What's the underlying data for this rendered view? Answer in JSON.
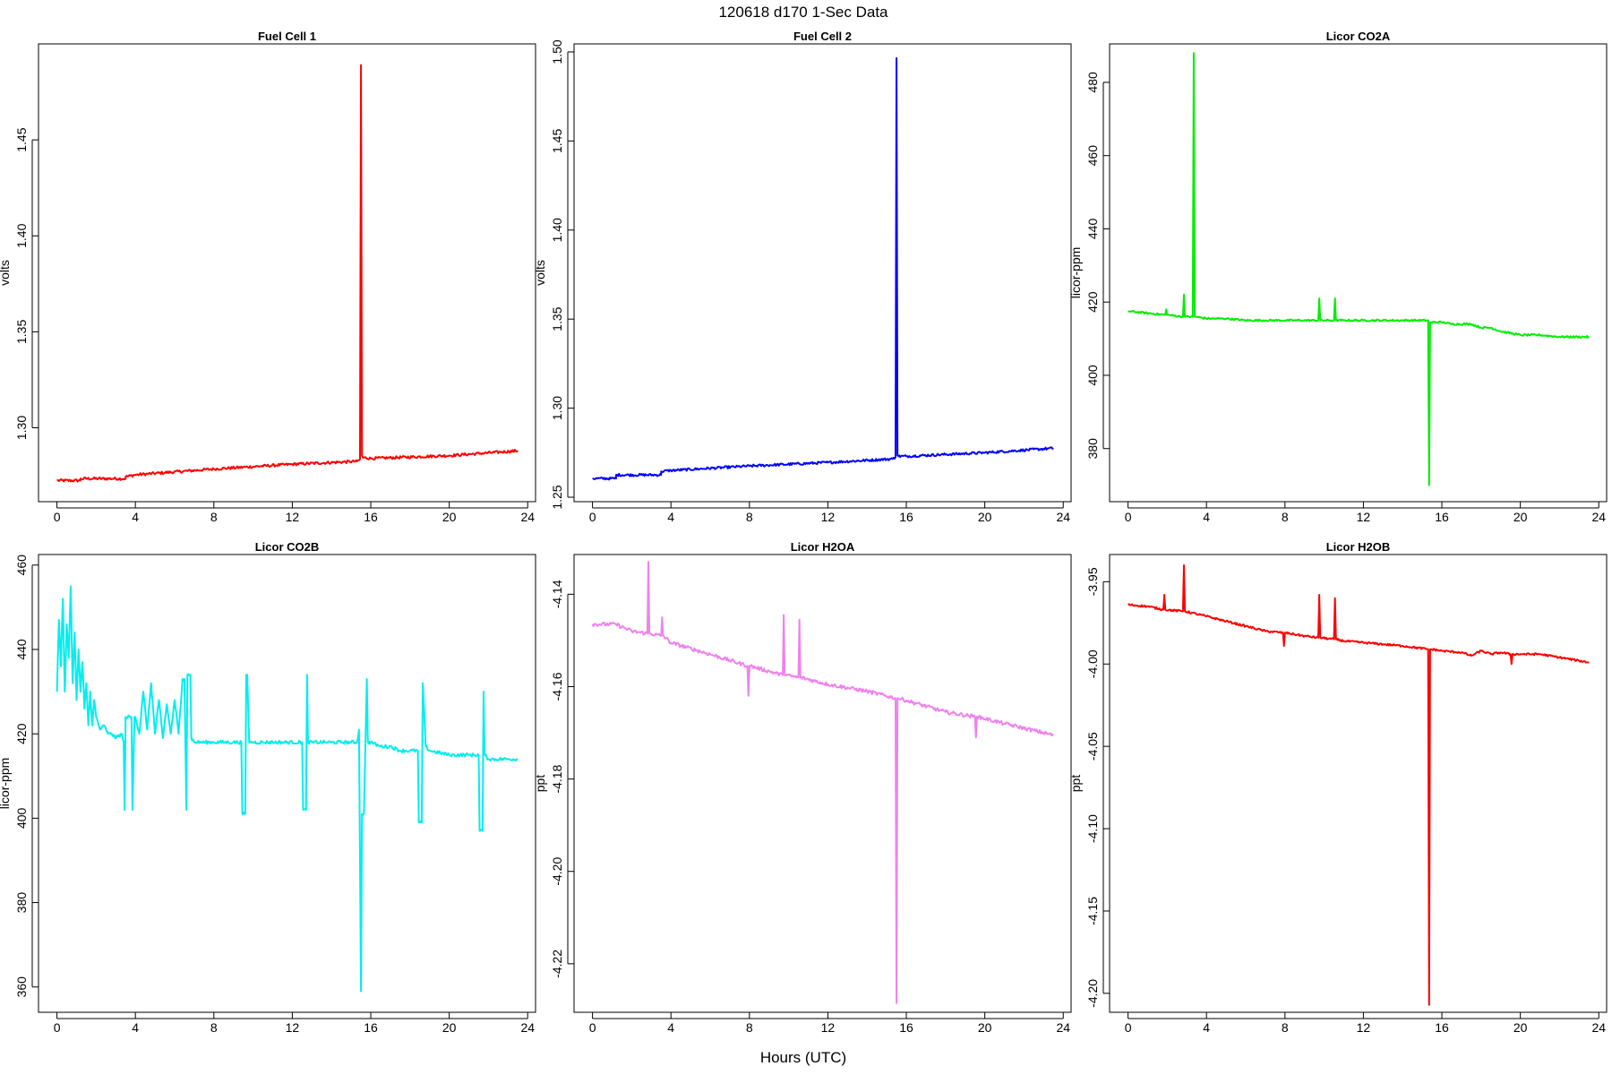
{
  "figure": {
    "title": "120618   d170   1-Sec Data",
    "xlabel": "Hours (UTC)"
  },
  "chart_data": [
    {
      "type": "line",
      "title": "Fuel Cell 1",
      "ylabel": "volts",
      "xlim": [
        -0.94,
        24.4
      ],
      "ylim": [
        1.2615,
        1.5
      ],
      "xticks": [
        0,
        4,
        8,
        12,
        16,
        20,
        24
      ],
      "yticks": [
        1.3,
        1.35,
        1.4,
        1.45
      ],
      "ytick_labels": [
        "1.30",
        "1.35",
        "1.40",
        "1.45"
      ],
      "color": "#ff0000",
      "noise": 0.0007,
      "series": [
        {
          "x": [
            0,
            1.2,
            1.2,
            3.5,
            3.5,
            4,
            8,
            12,
            15.3,
            15.45,
            15.5,
            15.55,
            15.6,
            16,
            20,
            23.5
          ],
          "y": [
            1.2725,
            1.2725,
            1.2735,
            1.2735,
            1.2745,
            1.2755,
            1.2785,
            1.281,
            1.2825,
            1.2835,
            1.489,
            1.2855,
            1.2845,
            1.284,
            1.2855,
            1.288
          ]
        }
      ]
    },
    {
      "type": "line",
      "title": "Fuel Cell 2",
      "ylabel": "volts",
      "xlim": [
        -0.94,
        24.4
      ],
      "ylim": [
        1.2475,
        1.5045
      ],
      "xticks": [
        0,
        4,
        8,
        12,
        16,
        20,
        24
      ],
      "yticks": [
        1.25,
        1.3,
        1.35,
        1.4,
        1.45,
        1.5
      ],
      "ytick_labels": [
        "1.25",
        "1.30",
        "1.35",
        "1.40",
        "1.45",
        "1.50"
      ],
      "color": "#0000ff",
      "noise": 0.0007,
      "series": [
        {
          "x": [
            0,
            1.2,
            1.2,
            3.5,
            3.5,
            4,
            8,
            12,
            15.3,
            15.45,
            15.5,
            15.55,
            15.6,
            16,
            20,
            23.5
          ],
          "y": [
            1.2605,
            1.2605,
            1.2625,
            1.2625,
            1.2645,
            1.265,
            1.2675,
            1.2695,
            1.2715,
            1.2725,
            1.4965,
            1.2735,
            1.273,
            1.273,
            1.275,
            1.2775
          ]
        }
      ]
    },
    {
      "type": "line",
      "title": "Licor CO2A",
      "ylabel": "licor-ppm",
      "xlim": [
        -0.94,
        24.4
      ],
      "ylim": [
        365.5,
        490.5
      ],
      "xticks": [
        0,
        4,
        8,
        12,
        16,
        20,
        24
      ],
      "yticks": [
        380,
        400,
        420,
        440,
        460,
        480
      ],
      "ytick_labels": [
        "380",
        "400",
        "420",
        "440",
        "460",
        "480"
      ],
      "color": "#00ee00",
      "noise": 0.25,
      "series": [
        {
          "x": [
            0,
            1.9,
            1.95,
            2,
            2.8,
            2.85,
            2.9,
            3.3,
            3.35,
            3.4,
            3.45,
            4,
            5,
            6,
            7,
            8,
            9,
            9.7,
            9.75,
            9.8,
            10.5,
            10.55,
            10.6,
            11,
            12,
            13,
            14,
            15.3,
            15.35,
            15.4,
            15.45,
            16,
            16.5,
            17.5,
            18,
            18.5,
            19,
            20,
            21,
            22,
            23.5
          ],
          "y": [
            417.5,
            416.5,
            418,
            416.5,
            416,
            422,
            416,
            416,
            488,
            416,
            416,
            415.5,
            415.5,
            415,
            415,
            415,
            415,
            415,
            421,
            415,
            415,
            421,
            415,
            415,
            415,
            415,
            415,
            415,
            370,
            414.5,
            414.5,
            414.5,
            414,
            414,
            413,
            413,
            412,
            411,
            411,
            410.5,
            410.5
          ]
        }
      ]
    },
    {
      "type": "line",
      "title": "Licor CO2B",
      "ylabel": "licor-ppm",
      "xlim": [
        -0.94,
        24.4
      ],
      "ylim": [
        354,
        462.5
      ],
      "xticks": [
        0,
        4,
        8,
        12,
        16,
        20,
        24
      ],
      "yticks": [
        360,
        380,
        400,
        420,
        440,
        460
      ],
      "ytick_labels": [
        "360",
        "380",
        "400",
        "420",
        "440",
        "460"
      ],
      "color": "#00eeee",
      "noise": 0.4,
      "series": [
        {
          "x": [
            0,
            0.1,
            0.2,
            0.3,
            0.4,
            0.5,
            0.6,
            0.7,
            0.8,
            0.9,
            1,
            1.1,
            1.2,
            1.3,
            1.4,
            1.5,
            1.6,
            1.7,
            1.8,
            1.9,
            2,
            2.2,
            2.4,
            2.6,
            2.8,
            3,
            3.3,
            3.4,
            3.45,
            3.5,
            3.8,
            3.85,
            3.95,
            4,
            4.2,
            4.4,
            4.6,
            4.8,
            5,
            5.2,
            5.4,
            5.6,
            5.8,
            6,
            6.2,
            6.4,
            6.5,
            6.6,
            6.65,
            6.8,
            6.85,
            7,
            7.5,
            8,
            9,
            9.4,
            9.45,
            9.6,
            9.65,
            9.7,
            9.8,
            9.85,
            10,
            10.5,
            11,
            12,
            12.5,
            12.55,
            12.7,
            12.75,
            12.8,
            13,
            14,
            15,
            15.3,
            15.4,
            15.5,
            15.55,
            15.65,
            15.8,
            15.85,
            16,
            16.5,
            17,
            17.5,
            18,
            18.4,
            18.45,
            18.6,
            18.65,
            18.8,
            19,
            20,
            21,
            21.5,
            21.55,
            21.7,
            21.75,
            21.8,
            22,
            23,
            23.5
          ],
          "y": [
            430,
            447,
            436,
            452,
            430,
            446,
            438,
            455,
            432,
            444,
            428,
            440,
            430,
            437,
            426,
            432,
            422,
            430,
            422,
            428,
            424,
            421,
            422,
            420,
            420,
            419,
            420,
            418,
            402,
            424,
            424,
            402,
            424,
            424,
            420,
            430,
            421,
            432,
            420,
            428,
            419,
            427,
            420,
            428,
            420,
            433,
            433,
            402,
            434,
            434,
            419,
            418,
            418,
            418,
            418,
            418,
            401,
            401,
            434,
            434,
            418,
            418,
            418,
            418,
            418,
            418,
            418,
            402,
            402,
            434,
            418,
            418,
            418,
            418,
            418,
            421,
            359,
            401,
            401,
            433,
            418,
            418,
            417,
            417,
            416,
            416,
            416,
            399,
            399,
            432,
            417,
            416,
            415,
            415,
            415,
            397,
            397,
            430,
            415,
            414,
            414,
            414
          ]
        }
      ]
    },
    {
      "type": "line",
      "title": "Licor H2OA",
      "ylabel": "ppt",
      "xlim": [
        -0.94,
        24.4
      ],
      "ylim": [
        -4.2305,
        -4.1314
      ],
      "xticks": [
        0,
        4,
        8,
        12,
        16,
        20,
        24
      ],
      "yticks": [
        -4.22,
        -4.2,
        -4.18,
        -4.16,
        -4.14
      ],
      "ytick_labels": [
        "-4.22",
        "-4.20",
        "-4.18",
        "-4.16",
        "-4.14"
      ],
      "color": "#ee82ee",
      "noise": 0.0004,
      "series": [
        {
          "x": [
            0,
            1.2,
            2,
            2.8,
            2.85,
            2.9,
            3.5,
            3.55,
            3.6,
            4,
            6,
            7.9,
            7.95,
            8,
            9.7,
            9.75,
            9.8,
            10.5,
            10.55,
            10.6,
            12,
            14,
            15.45,
            15.5,
            15.55,
            16,
            18,
            19.5,
            19.55,
            19.6,
            21,
            23.5
          ],
          "y": [
            -4.1465,
            -4.1465,
            -4.148,
            -4.1485,
            -4.133,
            -4.1485,
            -4.149,
            -4.145,
            -4.149,
            -4.1505,
            -4.153,
            -4.1555,
            -4.162,
            -4.1555,
            -4.1575,
            -4.1445,
            -4.1575,
            -4.158,
            -4.1455,
            -4.158,
            -4.1595,
            -4.161,
            -4.1625,
            -4.2285,
            -4.1625,
            -4.163,
            -4.1655,
            -4.1665,
            -4.171,
            -4.1665,
            -4.168,
            -4.1705
          ]
        }
      ]
    },
    {
      "type": "line",
      "title": "Licor H2OB",
      "ylabel": "ppt",
      "xlim": [
        -0.94,
        24.4
      ],
      "ylim": [
        -4.2115,
        -3.9335
      ],
      "xticks": [
        0,
        4,
        8,
        12,
        16,
        20,
        24
      ],
      "yticks": [
        -4.2,
        -4.15,
        -4.1,
        -4.05,
        -4.0,
        -3.95
      ],
      "ytick_labels": [
        "-4.20",
        "-4.15",
        "-4.10",
        "-4.05",
        "-4.00",
        "-3.95"
      ],
      "color": "#ff0000",
      "noise": 0.0006,
      "series": [
        {
          "x": [
            0,
            1,
            1.8,
            1.85,
            1.9,
            2.8,
            2.85,
            2.9,
            4,
            5,
            6,
            7,
            7.9,
            7.95,
            8,
            9,
            9.7,
            9.75,
            9.8,
            10.5,
            10.55,
            10.6,
            11,
            12,
            13,
            14,
            15.3,
            15.35,
            15.4,
            15.45,
            16,
            17,
            17.5,
            18,
            18.5,
            19,
            19.5,
            19.55,
            19.6,
            20,
            21,
            22,
            23,
            23.5
          ],
          "y": [
            -3.964,
            -3.965,
            -3.967,
            -3.958,
            -3.967,
            -3.968,
            -3.94,
            -3.968,
            -3.971,
            -3.974,
            -3.977,
            -3.98,
            -3.981,
            -3.989,
            -3.981,
            -3.983,
            -3.984,
            -3.958,
            -3.984,
            -3.985,
            -3.96,
            -3.985,
            -3.986,
            -3.987,
            -3.988,
            -3.989,
            -3.991,
            -4.207,
            -3.991,
            -3.991,
            -3.992,
            -3.993,
            -3.995,
            -3.992,
            -3.994,
            -3.993,
            -3.994,
            -4.0,
            -3.994,
            -3.994,
            -3.994,
            -3.996,
            -3.998,
            -3.999
          ]
        }
      ]
    }
  ]
}
